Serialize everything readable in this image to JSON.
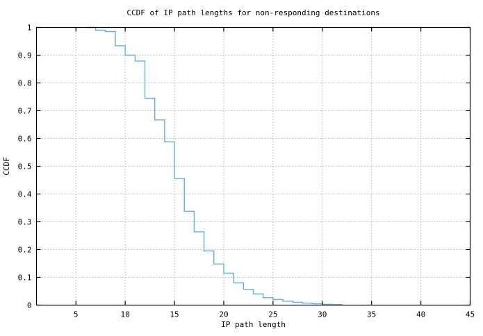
{
  "chart_data": {
    "type": "line",
    "subtype": "steps",
    "title": "CCDF of IP path lengths for non-responding destinations",
    "xlabel": "IP path length",
    "ylabel": "CCDF",
    "xlim": [
      1,
      45
    ],
    "ylim": [
      0,
      1
    ],
    "xticks": [
      5,
      10,
      15,
      20,
      25,
      30,
      35,
      40,
      45
    ],
    "xtick_labels": [
      "5",
      "10",
      "15",
      "20",
      "25",
      "30",
      "35",
      "40",
      "45"
    ],
    "yticks": [
      0,
      0.1,
      0.2,
      0.3,
      0.4,
      0.5,
      0.6,
      0.7,
      0.8,
      0.9,
      1
    ],
    "ytick_labels": [
      "0",
      "0.1",
      "0.2",
      "0.3",
      "0.4",
      "0.5",
      "0.6",
      "0.7",
      "0.8",
      "0.9",
      "1"
    ],
    "grid": true,
    "legend": null,
    "series": [
      {
        "name": "CCDF of IP path lengths",
        "style": "steps",
        "color": "#5db3de",
        "x": [
          6,
          7,
          8,
          9,
          10,
          11,
          12,
          13,
          14,
          15,
          16,
          17,
          18,
          19,
          20,
          21,
          22,
          23,
          24,
          25,
          26,
          27,
          28,
          29,
          30,
          31,
          32
        ],
        "y": [
          1.0,
          0.99,
          0.985,
          0.934,
          0.9,
          0.879,
          0.745,
          0.667,
          0.588,
          0.456,
          0.338,
          0.264,
          0.195,
          0.148,
          0.115,
          0.08,
          0.057,
          0.04,
          0.027,
          0.02,
          0.014,
          0.01,
          0.007,
          0.005,
          0.003,
          0.002,
          0.0
        ]
      }
    ],
    "colors": {
      "line": "#5db3de",
      "grid": "#b4b4b4",
      "axis": "#000000",
      "background": "#ffffff"
    }
  }
}
